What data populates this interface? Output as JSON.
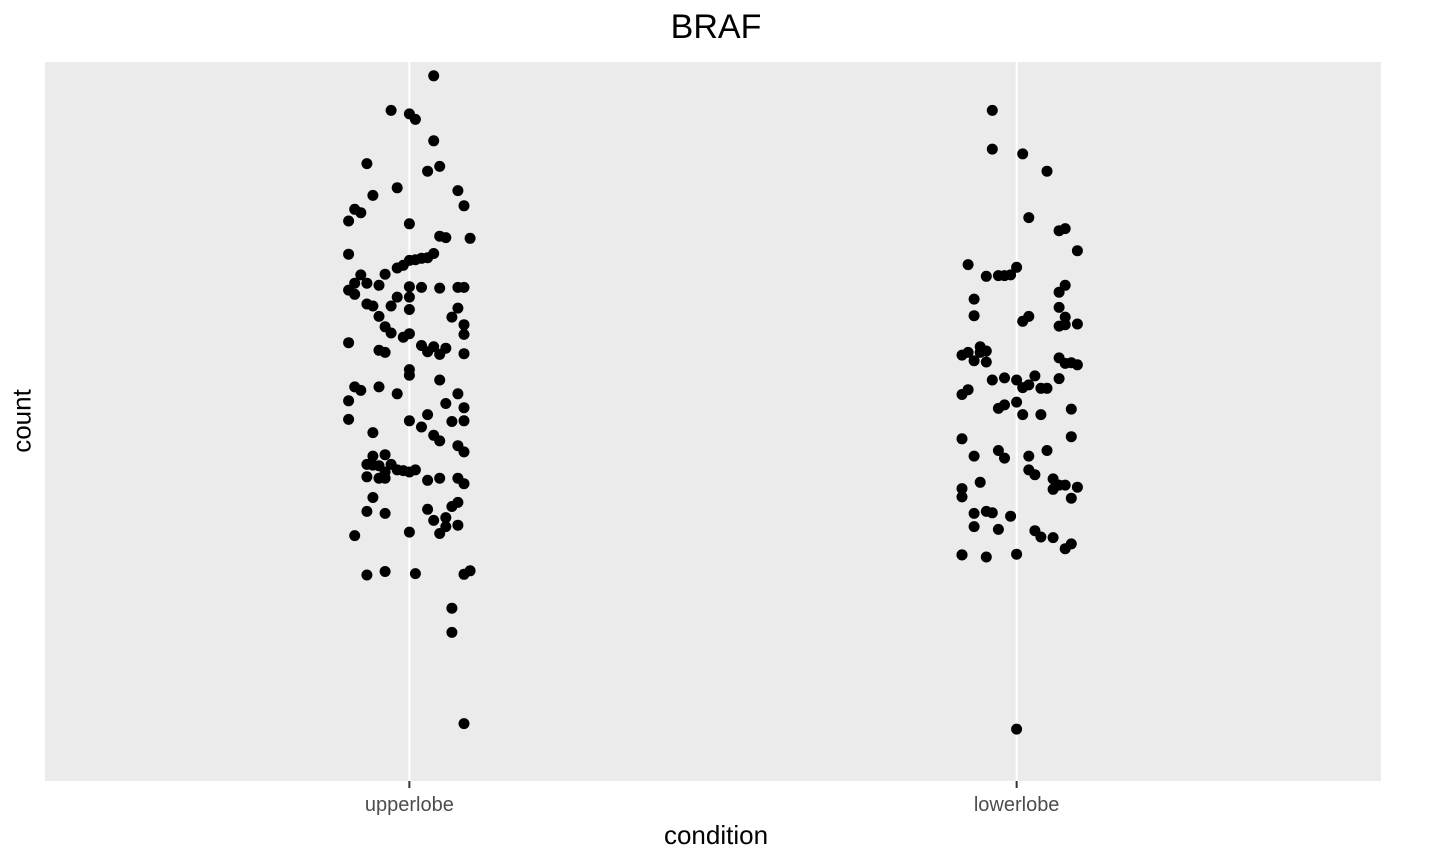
{
  "chart_data": {
    "type": "scatter",
    "style": "jittered strip plot",
    "title": "BRAF",
    "xlabel": "condition",
    "ylabel": "count",
    "categories": [
      "upperlobe",
      "lowerlobe"
    ],
    "y_ticks_shown": false,
    "y_range_relative": [
      -0.02,
      1.02
    ],
    "grid": "vertical major gridlines only",
    "legend": "none",
    "colors": {
      "panel": "#EBEBEB",
      "grid": "#FFFFFF",
      "point": "#000000",
      "tick_text": "#4D4D4D"
    },
    "series": [
      {
        "category": "upperlobe",
        "points": [
          [
            0.04,
            1.0
          ],
          [
            -0.03,
            0.95
          ],
          [
            0.0,
            0.945
          ],
          [
            0.01,
            0.937
          ],
          [
            0.04,
            0.906
          ],
          [
            -0.07,
            0.873
          ],
          [
            0.05,
            0.869
          ],
          [
            0.03,
            0.862
          ],
          [
            -0.02,
            0.838
          ],
          [
            0.08,
            0.834
          ],
          [
            -0.06,
            0.827
          ],
          [
            0.09,
            0.812
          ],
          [
            -0.09,
            0.807
          ],
          [
            -0.08,
            0.802
          ],
          [
            -0.1,
            0.79
          ],
          [
            0.0,
            0.786
          ],
          [
            0.05,
            0.768
          ],
          [
            0.06,
            0.766
          ],
          [
            0.1,
            0.765
          ],
          [
            -0.1,
            0.742
          ],
          [
            0.04,
            0.743
          ],
          [
            0.03,
            0.737
          ],
          [
            0.02,
            0.736
          ],
          [
            0.01,
            0.734
          ],
          [
            0.0,
            0.733
          ],
          [
            -0.01,
            0.726
          ],
          [
            -0.02,
            0.722
          ],
          [
            -0.04,
            0.713
          ],
          [
            -0.08,
            0.712
          ],
          [
            -0.09,
            0.7
          ],
          [
            -0.07,
            0.7
          ],
          [
            -0.05,
            0.697
          ],
          [
            0.0,
            0.695
          ],
          [
            0.02,
            0.694
          ],
          [
            0.05,
            0.693
          ],
          [
            0.08,
            0.694
          ],
          [
            0.09,
            0.694
          ],
          [
            -0.1,
            0.69
          ],
          [
            -0.09,
            0.684
          ],
          [
            -0.02,
            0.68
          ],
          [
            0.0,
            0.68
          ],
          [
            -0.07,
            0.67
          ],
          [
            -0.06,
            0.667
          ],
          [
            -0.03,
            0.667
          ],
          [
            0.0,
            0.662
          ],
          [
            0.08,
            0.664
          ],
          [
            -0.05,
            0.652
          ],
          [
            0.07,
            0.651
          ],
          [
            0.09,
            0.64
          ],
          [
            -0.04,
            0.637
          ],
          [
            -0.03,
            0.628
          ],
          [
            0.0,
            0.627
          ],
          [
            0.09,
            0.626
          ],
          [
            -0.1,
            0.614
          ],
          [
            -0.01,
            0.622
          ],
          [
            0.02,
            0.61
          ],
          [
            0.04,
            0.608
          ],
          [
            0.06,
            0.606
          ],
          [
            -0.05,
            0.603
          ],
          [
            -0.04,
            0.6
          ],
          [
            0.03,
            0.601
          ],
          [
            0.05,
            0.597
          ],
          [
            0.09,
            0.598
          ],
          [
            -0.05,
            0.55
          ],
          [
            0.0,
            0.575
          ],
          [
            0.0,
            0.567
          ],
          [
            0.05,
            0.56
          ],
          [
            -0.09,
            0.55
          ],
          [
            -0.08,
            0.545
          ],
          [
            -0.1,
            0.53
          ],
          [
            -0.02,
            0.54
          ],
          [
            0.08,
            0.54
          ],
          [
            0.06,
            0.526
          ],
          [
            0.09,
            0.52
          ],
          [
            -0.1,
            0.503
          ],
          [
            0.0,
            0.501
          ],
          [
            0.03,
            0.51
          ],
          [
            0.07,
            0.5
          ],
          [
            0.09,
            0.501
          ],
          [
            -0.06,
            0.484
          ],
          [
            0.02,
            0.492
          ],
          [
            0.04,
            0.48
          ],
          [
            0.05,
            0.472
          ],
          [
            0.08,
            0.465
          ],
          [
            0.09,
            0.456
          ],
          [
            -0.06,
            0.45
          ],
          [
            -0.04,
            0.452
          ],
          [
            -0.06,
            0.437
          ],
          [
            -0.07,
            0.438
          ],
          [
            -0.05,
            0.436
          ],
          [
            -0.04,
            0.427
          ],
          [
            -0.03,
            0.438
          ],
          [
            -0.01,
            0.429
          ],
          [
            0.01,
            0.43
          ],
          [
            0.03,
            0.415
          ],
          [
            -0.07,
            0.42
          ],
          [
            -0.05,
            0.418
          ],
          [
            -0.04,
            0.418
          ],
          [
            -0.02,
            0.43
          ],
          [
            -0.06,
            0.39
          ],
          [
            0.0,
            0.427
          ],
          [
            0.05,
            0.418
          ],
          [
            0.08,
            0.418
          ],
          [
            0.09,
            0.41
          ],
          [
            -0.07,
            0.37
          ],
          [
            -0.04,
            0.367
          ],
          [
            0.03,
            0.373
          ],
          [
            0.08,
            0.383
          ],
          [
            0.07,
            0.377
          ],
          [
            0.06,
            0.361
          ],
          [
            0.04,
            0.357
          ],
          [
            0.06,
            0.348
          ],
          [
            0.08,
            0.35
          ],
          [
            -0.09,
            0.335
          ],
          [
            0.0,
            0.34
          ],
          [
            0.05,
            0.338
          ],
          [
            -0.07,
            0.278
          ],
          [
            -0.04,
            0.283
          ],
          [
            0.01,
            0.28
          ],
          [
            0.1,
            0.284
          ],
          [
            0.09,
            0.279
          ],
          [
            0.07,
            0.23
          ],
          [
            0.07,
            0.195
          ],
          [
            0.09,
            0.063
          ]
        ]
      },
      {
        "category": "lowerlobe",
        "points": [
          [
            -0.04,
            0.95
          ],
          [
            -0.04,
            0.894
          ],
          [
            0.01,
            0.887
          ],
          [
            0.05,
            0.862
          ],
          [
            0.02,
            0.795
          ],
          [
            0.07,
            0.776
          ],
          [
            0.08,
            0.779
          ],
          [
            0.1,
            0.747
          ],
          [
            -0.08,
            0.727
          ],
          [
            -0.05,
            0.71
          ],
          [
            -0.03,
            0.711
          ],
          [
            -0.02,
            0.711
          ],
          [
            -0.01,
            0.712
          ],
          [
            0.0,
            0.723
          ],
          [
            0.07,
            0.687
          ],
          [
            0.08,
            0.697
          ],
          [
            -0.07,
            0.677
          ],
          [
            0.07,
            0.665
          ],
          [
            -0.07,
            0.653
          ],
          [
            0.01,
            0.645
          ],
          [
            0.02,
            0.652
          ],
          [
            0.08,
            0.64
          ],
          [
            0.07,
            0.638
          ],
          [
            0.08,
            0.651
          ],
          [
            0.1,
            0.641
          ],
          [
            -0.06,
            0.608
          ],
          [
            -0.05,
            0.602
          ],
          [
            -0.06,
            0.6
          ],
          [
            -0.08,
            0.6
          ],
          [
            -0.09,
            0.596
          ],
          [
            -0.07,
            0.588
          ],
          [
            -0.05,
            0.586
          ],
          [
            0.07,
            0.592
          ],
          [
            0.08,
            0.584
          ],
          [
            0.09,
            0.585
          ],
          [
            0.1,
            0.582
          ],
          [
            0.07,
            0.562
          ],
          [
            -0.04,
            0.56
          ],
          [
            -0.02,
            0.563
          ],
          [
            0.0,
            0.56
          ],
          [
            0.03,
            0.566
          ],
          [
            0.01,
            0.549
          ],
          [
            0.02,
            0.553
          ],
          [
            0.05,
            0.548
          ],
          [
            0.04,
            0.548
          ],
          [
            -0.08,
            0.546
          ],
          [
            -0.09,
            0.539
          ],
          [
            -0.02,
            0.524
          ],
          [
            0.0,
            0.528
          ],
          [
            -0.03,
            0.519
          ],
          [
            0.01,
            0.51
          ],
          [
            0.04,
            0.51
          ],
          [
            0.09,
            0.518
          ],
          [
            -0.09,
            0.475
          ],
          [
            0.09,
            0.478
          ],
          [
            -0.07,
            0.45
          ],
          [
            -0.06,
            0.412
          ],
          [
            0.02,
            0.45
          ],
          [
            -0.02,
            0.447
          ],
          [
            0.05,
            0.458
          ],
          [
            -0.03,
            0.458
          ],
          [
            0.02,
            0.43
          ],
          [
            0.03,
            0.423
          ],
          [
            0.06,
            0.417
          ],
          [
            0.08,
            0.408
          ],
          [
            -0.09,
            0.403
          ],
          [
            0.06,
            0.402
          ],
          [
            0.1,
            0.405
          ],
          [
            0.07,
            0.408
          ],
          [
            0.09,
            0.389
          ],
          [
            -0.09,
            0.391
          ],
          [
            -0.07,
            0.367
          ],
          [
            -0.05,
            0.37
          ],
          [
            -0.04,
            0.368
          ],
          [
            -0.01,
            0.363
          ],
          [
            -0.07,
            0.348
          ],
          [
            -0.03,
            0.344
          ],
          [
            0.03,
            0.342
          ],
          [
            0.04,
            0.333
          ],
          [
            0.06,
            0.332
          ],
          [
            0.09,
            0.323
          ],
          [
            0.08,
            0.316
          ],
          [
            -0.09,
            0.307
          ],
          [
            -0.05,
            0.304
          ],
          [
            0.0,
            0.308
          ],
          [
            -0.09,
            0.307
          ],
          [
            0.0,
            0.055
          ]
        ]
      }
    ]
  }
}
